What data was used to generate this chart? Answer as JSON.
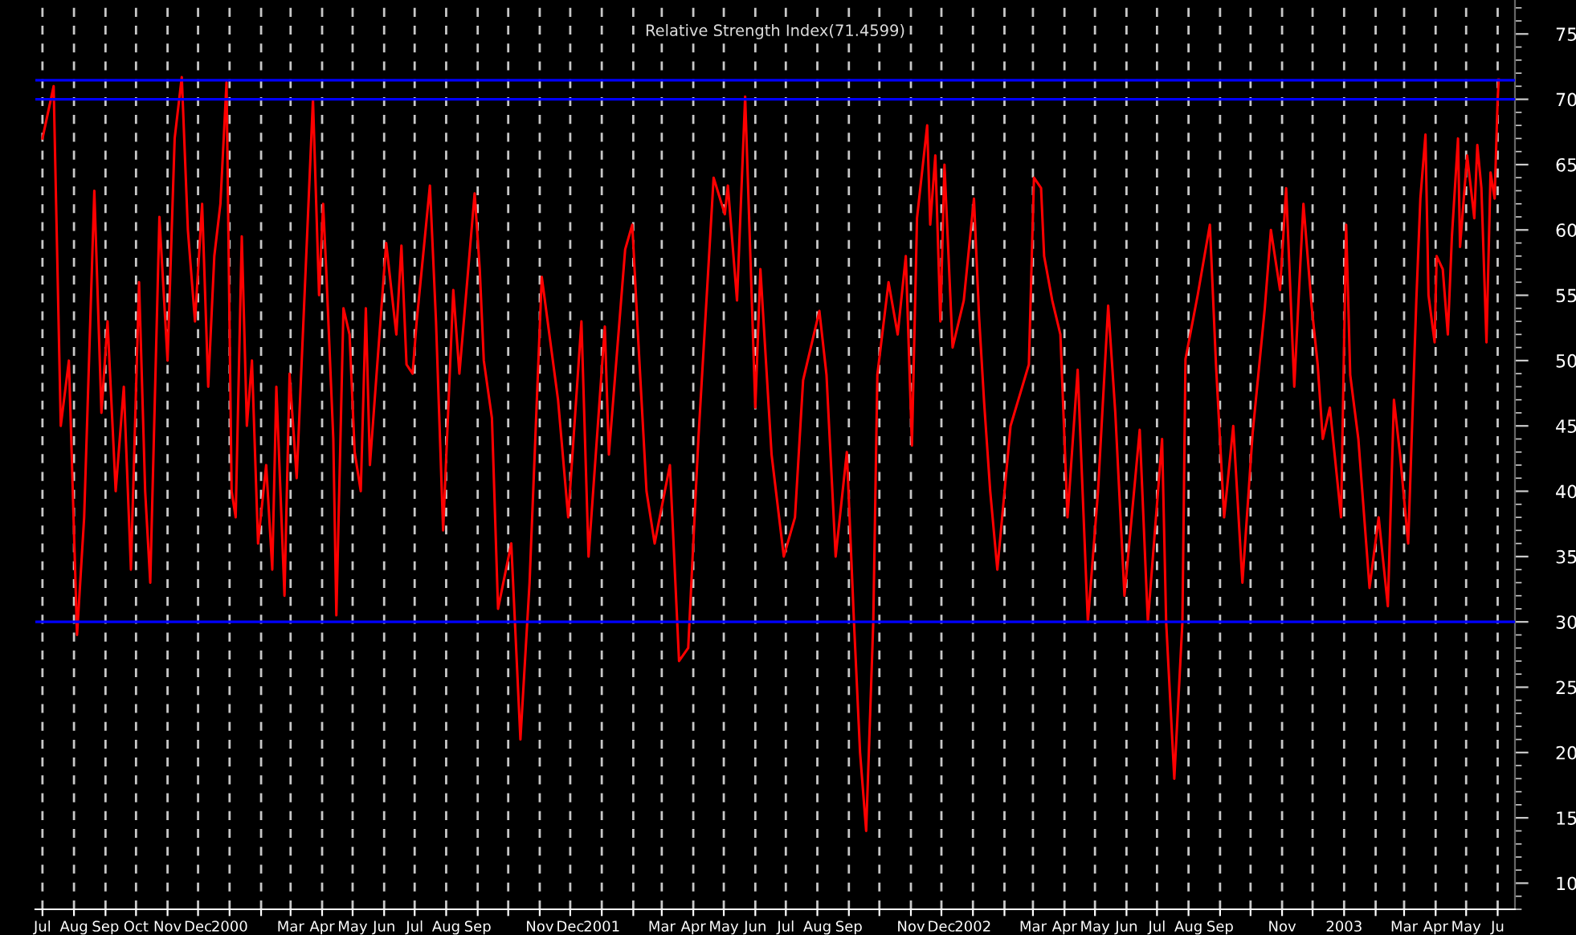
{
  "chart_data": {
    "type": "line",
    "title": "Relative Strength Index(71.4599)",
    "x": [
      "1999-07-01",
      "1999-07-12",
      "1999-07-19",
      "1999-07-27",
      "1999-08-04",
      "1999-08-11",
      "1999-08-21",
      "1999-08-28",
      "1999-09-03",
      "1999-09-11",
      "1999-09-19",
      "1999-09-26",
      "1999-10-04",
      "1999-10-10",
      "1999-10-15",
      "1999-10-24",
      "1999-11-01",
      "1999-11-08",
      "1999-11-15",
      "1999-11-21",
      "1999-11-28",
      "1999-12-05",
      "1999-12-11",
      "1999-12-17",
      "1999-12-23",
      "1999-12-29",
      "2000-01-03",
      "2000-01-07",
      "2000-01-13",
      "2000-01-18",
      "2000-01-23",
      "2000-01-29",
      "2000-02-06",
      "2000-02-12",
      "2000-02-16",
      "2000-02-24",
      "2000-02-29",
      "2000-03-07",
      "2000-03-23",
      "2000-03-29",
      "2000-04-02",
      "2000-04-05",
      "2000-04-12",
      "2000-04-15",
      "2000-04-22",
      "2000-04-28",
      "2000-05-03",
      "2000-05-09",
      "2000-05-14",
      "2000-05-18",
      "2000-06-03",
      "2000-06-13",
      "2000-06-18",
      "2000-06-23",
      "2000-06-29",
      "2000-07-03",
      "2000-07-16",
      "2000-07-22",
      "2000-07-29",
      "2000-08-08",
      "2000-08-14",
      "2000-08-29",
      "2000-09-03",
      "2000-09-07",
      "2000-09-15",
      "2000-09-21",
      "2000-10-04",
      "2000-10-13",
      "2000-10-22",
      "2000-11-03",
      "2000-11-19",
      "2000-11-29",
      "2000-12-12",
      "2000-12-19",
      "2001-01-04",
      "2001-01-08",
      "2001-01-24",
      "2001-01-31",
      "2001-02-06",
      "2001-02-14",
      "2001-02-22",
      "2001-03-09",
      "2001-03-18",
      "2001-03-27",
      "2001-04-06",
      "2001-04-21",
      "2001-05-02",
      "2001-05-05",
      "2001-05-14",
      "2001-05-22",
      "2001-06-01",
      "2001-06-06",
      "2001-06-17",
      "2001-06-29",
      "2001-07-10",
      "2001-07-18",
      "2001-08-03",
      "2001-08-10",
      "2001-08-19",
      "2001-08-30",
      "2001-09-06",
      "2001-09-12",
      "2001-09-18",
      "2001-09-25",
      "2001-09-29",
      "2001-10-10",
      "2001-10-19",
      "2001-10-27",
      "2001-11-02",
      "2001-11-07",
      "2001-11-17",
      "2001-11-20",
      "2001-11-25",
      "2001-11-30",
      "2001-12-04",
      "2001-12-12",
      "2001-12-23",
      "2002-01-02",
      "2002-01-07",
      "2002-01-12",
      "2002-01-18",
      "2002-01-25",
      "2002-02-07",
      "2002-02-25",
      "2002-03-02",
      "2002-03-09",
      "2002-03-12",
      "2002-03-20",
      "2002-03-28",
      "2002-04-01",
      "2002-04-04",
      "2002-04-14",
      "2002-04-24",
      "2002-05-04",
      "2002-05-14",
      "2002-05-21",
      "2002-05-30",
      "2002-06-14",
      "2002-06-22",
      "2002-07-06",
      "2002-07-10",
      "2002-07-18",
      "2002-07-26",
      "2002-07-29",
      "2002-08-10",
      "2002-08-22",
      "2002-08-28",
      "2002-09-05",
      "2002-09-14",
      "2002-09-23",
      "2002-10-03",
      "2002-10-15",
      "2002-10-21",
      "2002-10-30",
      "2002-11-05",
      "2002-11-13",
      "2002-11-19",
      "2002-11-22",
      "2002-11-30",
      "2002-12-06",
      "2002-12-11",
      "2002-12-18",
      "2002-12-29",
      "2003-01-03",
      "2003-01-07",
      "2003-01-15",
      "2003-01-26",
      "2003-02-04",
      "2003-02-13",
      "2003-02-19",
      "2003-02-25",
      "2003-03-05",
      "2003-03-13",
      "2003-03-17",
      "2003-03-22",
      "2003-03-25",
      "2003-03-31",
      "2003-04-02",
      "2003-04-08",
      "2003-04-13",
      "2003-04-17",
      "2003-04-23",
      "2003-04-25",
      "2003-05-02",
      "2003-05-09",
      "2003-05-12",
      "2003-05-16",
      "2003-05-21",
      "2003-05-25",
      "2003-05-29",
      "2003-06-01",
      "2003-06-02"
    ],
    "series": [
      {
        "color": "#ff0000",
        "values": [
          67,
          71,
          45,
          50,
          29,
          38,
          63,
          46,
          53,
          40,
          48,
          34,
          56,
          40,
          33,
          61,
          50,
          67,
          71.7,
          60,
          53,
          62,
          48,
          58,
          62,
          71.3,
          40,
          38,
          59.5,
          45,
          50,
          36,
          42,
          34,
          48,
          32,
          49,
          41,
          70,
          55,
          62,
          57,
          44,
          30.5,
          54,
          52,
          43,
          40,
          54,
          42,
          59,
          52,
          58.8,
          49.7,
          49,
          53,
          63.4,
          53,
          37,
          55.4,
          49,
          62.8,
          57,
          50,
          45.6,
          31,
          36,
          21,
          33,
          56.4,
          47,
          38,
          53,
          35,
          52.6,
          42.8,
          58.5,
          60.4,
          51.4,
          40,
          36,
          42,
          27,
          28,
          44,
          64,
          61.2,
          63.4,
          54.6,
          70.2,
          46.4,
          57,
          42.8,
          35,
          38,
          48.5,
          53.8,
          48.9,
          35,
          43,
          30,
          20,
          14,
          30,
          48.9,
          56,
          52,
          58,
          43.5,
          60.9,
          68,
          60.4,
          65.7,
          53,
          65,
          51,
          54.6,
          62.4,
          53.4,
          46.8,
          40,
          34,
          45,
          49.7,
          64,
          63.2,
          58,
          54.6,
          52,
          44,
          38,
          49.3,
          30,
          40,
          54.2,
          46,
          32,
          44.7,
          30,
          44,
          30,
          18,
          30,
          50.1,
          55,
          60.4,
          49.7,
          38,
          45,
          33,
          44.4,
          54,
          60,
          55.4,
          63.2,
          48,
          57.5,
          62,
          54.2,
          49.7,
          44,
          46.4,
          38,
          60.4,
          48.9,
          44,
          32.6,
          38,
          31.2,
          47,
          42.8,
          36,
          54.6,
          62.4,
          67.3,
          55,
          51.4,
          58,
          57,
          52,
          59.5,
          67,
          58.7,
          65.7,
          60.9,
          66.5,
          63.2,
          51.4,
          64.4,
          62.4,
          70,
          71.5
        ]
      }
    ],
    "xlim": [
      "1999-06-24",
      "2003-06-18"
    ],
    "xticks": [
      {
        "value": "1999-07-01",
        "label": "Jul"
      },
      {
        "value": "1999-08-01",
        "label": "Aug"
      },
      {
        "value": "1999-09-01",
        "label": "Sep"
      },
      {
        "value": "1999-10-01",
        "label": "Oct"
      },
      {
        "value": "1999-11-01",
        "label": "Nov"
      },
      {
        "value": "1999-12-01",
        "label": "Dec"
      },
      {
        "value": "2000-01-01",
        "label": "2000"
      },
      {
        "value": "2000-02-01",
        "label": null
      },
      {
        "value": "2000-03-01",
        "label": "Mar"
      },
      {
        "value": "2000-04-01",
        "label": "Apr"
      },
      {
        "value": "2000-05-01",
        "label": "May"
      },
      {
        "value": "2000-06-01",
        "label": "Jun"
      },
      {
        "value": "2000-07-01",
        "label": "Jul"
      },
      {
        "value": "2000-08-01",
        "label": "Aug"
      },
      {
        "value": "2000-09-01",
        "label": "Sep"
      },
      {
        "value": "2000-10-01",
        "label": null
      },
      {
        "value": "2000-11-01",
        "label": "Nov"
      },
      {
        "value": "2000-12-01",
        "label": "Dec"
      },
      {
        "value": "2001-01-01",
        "label": "2001"
      },
      {
        "value": "2001-02-01",
        "label": null
      },
      {
        "value": "2001-03-01",
        "label": "Mar"
      },
      {
        "value": "2001-04-01",
        "label": "Apr"
      },
      {
        "value": "2001-05-01",
        "label": "May"
      },
      {
        "value": "2001-06-01",
        "label": "Jun"
      },
      {
        "value": "2001-07-01",
        "label": "Jul"
      },
      {
        "value": "2001-08-01",
        "label": "Aug"
      },
      {
        "value": "2001-09-01",
        "label": "Sep"
      },
      {
        "value": "2001-10-01",
        "label": null
      },
      {
        "value": "2001-11-01",
        "label": "Nov"
      },
      {
        "value": "2001-12-01",
        "label": "Dec"
      },
      {
        "value": "2002-01-01",
        "label": "2002"
      },
      {
        "value": "2002-02-01",
        "label": null
      },
      {
        "value": "2002-03-01",
        "label": "Mar"
      },
      {
        "value": "2002-04-01",
        "label": "Apr"
      },
      {
        "value": "2002-05-01",
        "label": "May"
      },
      {
        "value": "2002-06-01",
        "label": "Jun"
      },
      {
        "value": "2002-07-01",
        "label": "Jul"
      },
      {
        "value": "2002-08-01",
        "label": "Aug"
      },
      {
        "value": "2002-09-01",
        "label": "Sep"
      },
      {
        "value": "2002-10-01",
        "label": null
      },
      {
        "value": "2002-11-01",
        "label": "Nov"
      },
      {
        "value": "2002-12-01",
        "label": null
      },
      {
        "value": "2003-01-01",
        "label": "2003"
      },
      {
        "value": "2003-02-01",
        "label": null
      },
      {
        "value": "2003-03-01",
        "label": "Mar"
      },
      {
        "value": "2003-04-01",
        "label": "Apr"
      },
      {
        "value": "2003-05-01",
        "label": "May"
      },
      {
        "value": "2003-06-01",
        "label": "Ju"
      }
    ],
    "ylim": [
      8,
      77.6
    ],
    "yticks": [
      10,
      15,
      20,
      25,
      30,
      35,
      40,
      45,
      50,
      55,
      60,
      65,
      70,
      75
    ],
    "ref_lines": [
      {
        "axis": "y",
        "value": 71.46,
        "color": "#0000ff"
      },
      {
        "axis": "y",
        "value": 70,
        "color": "#0000ff"
      },
      {
        "axis": "y",
        "value": 30,
        "color": "#0000ff"
      }
    ],
    "grid": "x",
    "legend": false,
    "marker": "none",
    "line_style": "solid"
  }
}
